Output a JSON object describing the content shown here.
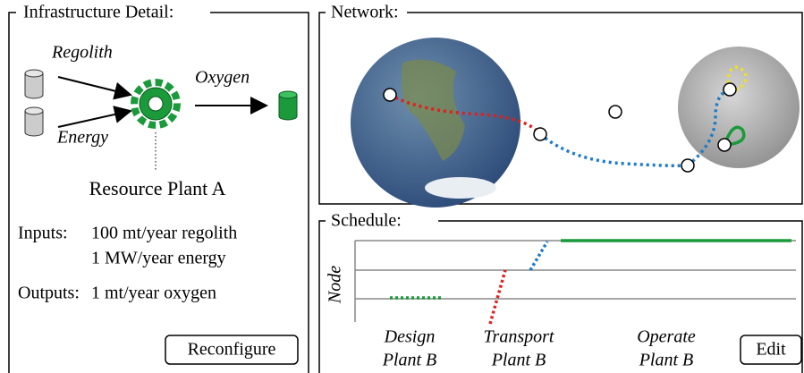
{
  "infrastructure": {
    "title": "Infrastructure Detail:",
    "inputs": [
      "Regolith",
      "Energy"
    ],
    "output": "Oxygen",
    "plant": "Resource Plant A",
    "inputs_label": "Inputs:",
    "input_lines": [
      "100 mt/year regolith",
      "1 MW/year energy"
    ],
    "outputs_label": "Outputs:",
    "output_lines": [
      "1 mt/year oxygen"
    ],
    "button": "Reconfigure"
  },
  "network": {
    "title": "Network:"
  },
  "schedule": {
    "title": "Schedule:",
    "y_label": "Node",
    "phases": [
      [
        "Design",
        "Plant B"
      ],
      [
        "Transport",
        "Plant B"
      ],
      [
        "Operate",
        "Plant B"
      ]
    ],
    "button": "Edit"
  }
}
